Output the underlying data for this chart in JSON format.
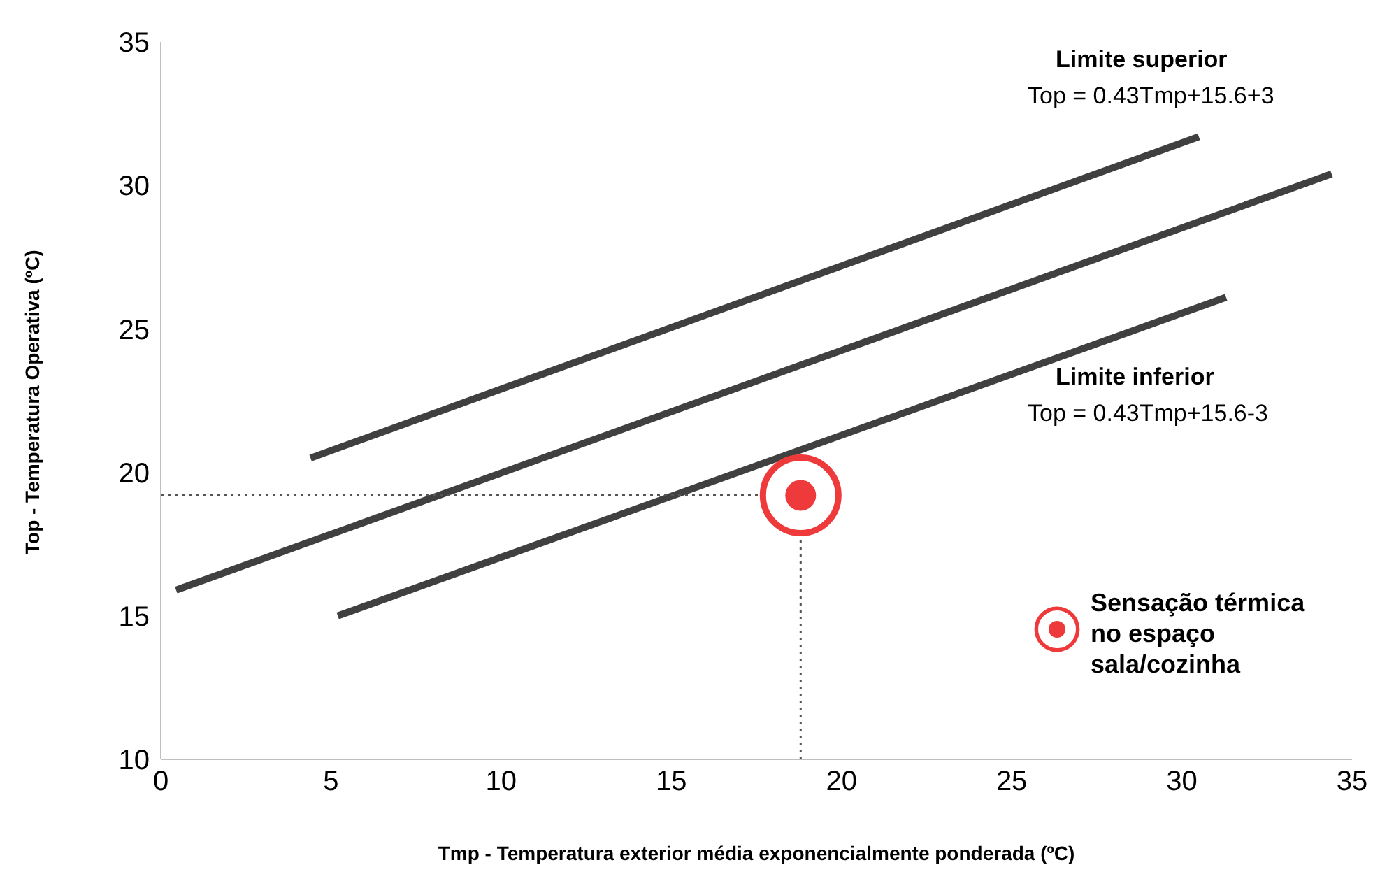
{
  "chart_data": {
    "type": "line",
    "xlabel": "Tmp - Temperatura exterior média exponencialmente ponderada (ºC)",
    "ylabel": "Top - Temperatura Operativa (ºC)",
    "xlim": [
      0,
      35
    ],
    "xticks": [
      0,
      5,
      10,
      15,
      20,
      25,
      30,
      35
    ],
    "ylim": [
      10,
      35
    ],
    "yticks": [
      10,
      15,
      20,
      25,
      30,
      35
    ],
    "grid": false,
    "legend": "bottom right",
    "series": [
      {
        "color": "#404040",
        "x": [
          4.4,
          30.5
        ],
        "values": [
          20.5,
          31.7
        ]
      },
      {
        "color": "#404040",
        "x": [
          0.45,
          34.4
        ],
        "values": [
          15.9,
          30.4
        ]
      },
      {
        "color": "#404040",
        "x": [
          5.2,
          31.3
        ],
        "values": [
          15.0,
          26.1
        ]
      },
      {
        "color": "#555555",
        "x": [
          0,
          17.6
        ],
        "values": [
          19.2,
          19.2
        ],
        "line_style": "dotted"
      },
      {
        "color": "#555555",
        "x": [
          18.8,
          18.8
        ],
        "values": [
          10,
          17.7
        ],
        "line_style": "dotted"
      },
      {
        "type": "scatter",
        "name": "Sensação térmica no espaço sala/cozinha",
        "color": "#ee3a3a",
        "x": [
          18.8
        ],
        "values": [
          19.2
        ],
        "marker": "circle"
      }
    ],
    "annotations": [
      "Limite superior",
      "Top = 0.43Tmp+15.6+3",
      "Limite inferior",
      "Top = 0.43Tmp+15.6-3"
    ]
  }
}
